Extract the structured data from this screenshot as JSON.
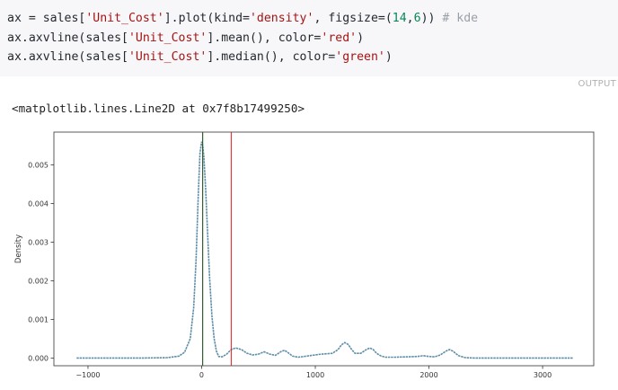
{
  "code": {
    "line1": {
      "p1": "ax = sales[",
      "s1": "'Unit_Cost'",
      "p2": "].plot(kind=",
      "s2": "'density'",
      "p3": ", figsize=(",
      "n1": "14",
      "p4": ",",
      "n2": "6",
      "p5": ")) ",
      "c1": "# kde"
    },
    "line2": {
      "p1": "ax.axvline(sales[",
      "s1": "'Unit_Cost'",
      "p2": "].mean(), color=",
      "s2": "'red'",
      "p3": ")"
    },
    "line3": {
      "p1": "ax.axvline(sales[",
      "s1": "'Unit_Cost'",
      "p2": "].median(), color=",
      "s2": "'green'",
      "p3": ")"
    }
  },
  "output": {
    "label": "OUTPUT",
    "repr": "<matplotlib.lines.Line2D at 0x7f8b17499250>"
  },
  "chart_data": {
    "type": "line",
    "title": "",
    "xlabel": "",
    "ylabel": "Density",
    "xlim": [
      -1300,
      3450
    ],
    "ylim": [
      -0.0002,
      0.00585
    ],
    "x_ticks": [
      -1000,
      0,
      1000,
      2000,
      3000
    ],
    "x_tick_labels": [
      "−1000",
      "0",
      "1000",
      "2000",
      "3000"
    ],
    "y_ticks": [
      0,
      0.001,
      0.002,
      0.003,
      0.004,
      0.005
    ],
    "y_tick_labels": [
      "0.000",
      "0.001",
      "0.002",
      "0.003",
      "0.004",
      "0.005"
    ],
    "grid": false,
    "series": [
      {
        "color": "#5f8fa8",
        "x": [
          -1100,
          -800,
          -500,
          -300,
          -200,
          -150,
          -100,
          -70,
          -50,
          -30,
          -15,
          0,
          10,
          20,
          35,
          50,
          70,
          90,
          110,
          130,
          150,
          180,
          220,
          260,
          300,
          350,
          400,
          450,
          500,
          550,
          600,
          650,
          700,
          730,
          760,
          800,
          850,
          900,
          950,
          1000,
          1050,
          1100,
          1150,
          1200,
          1230,
          1260,
          1290,
          1320,
          1350,
          1400,
          1450,
          1480,
          1510,
          1540,
          1580,
          1620,
          1700,
          1800,
          1900,
          1950,
          2000,
          2050,
          2100,
          2150,
          2180,
          2210,
          2260,
          2320,
          2400,
          2600,
          2800,
          3000,
          3270
        ],
        "y": [
          0,
          0,
          0,
          1e-05,
          5e-05,
          0.00015,
          0.0005,
          0.0013,
          0.0025,
          0.0042,
          0.0053,
          0.0056,
          0.0055,
          0.0052,
          0.0044,
          0.0034,
          0.0021,
          0.0011,
          0.0005,
          0.00018,
          4e-05,
          3e-05,
          0.0001,
          0.00022,
          0.00026,
          0.00022,
          0.00012,
          8e-05,
          0.0001,
          0.00016,
          0.0001,
          7e-05,
          0.00017,
          0.0002,
          0.00014,
          5e-05,
          2e-05,
          4e-05,
          6e-05,
          8e-05,
          0.0001,
          0.00011,
          0.00012,
          0.00022,
          0.00034,
          0.0004,
          0.00035,
          0.00022,
          0.00012,
          0.00012,
          0.00022,
          0.00026,
          0.00022,
          0.00012,
          5e-05,
          2e-05,
          2e-05,
          3e-05,
          4e-05,
          6e-05,
          4e-05,
          3e-05,
          8e-05,
          0.00018,
          0.00022,
          0.00018,
          6e-05,
          1e-05,
          0,
          0,
          0,
          0,
          0
        ]
      }
    ],
    "vlines": [
      {
        "label": "mean",
        "x": 261,
        "color": "#d62728"
      },
      {
        "label": "median",
        "x": 9,
        "color": "#2ca02c"
      }
    ]
  }
}
